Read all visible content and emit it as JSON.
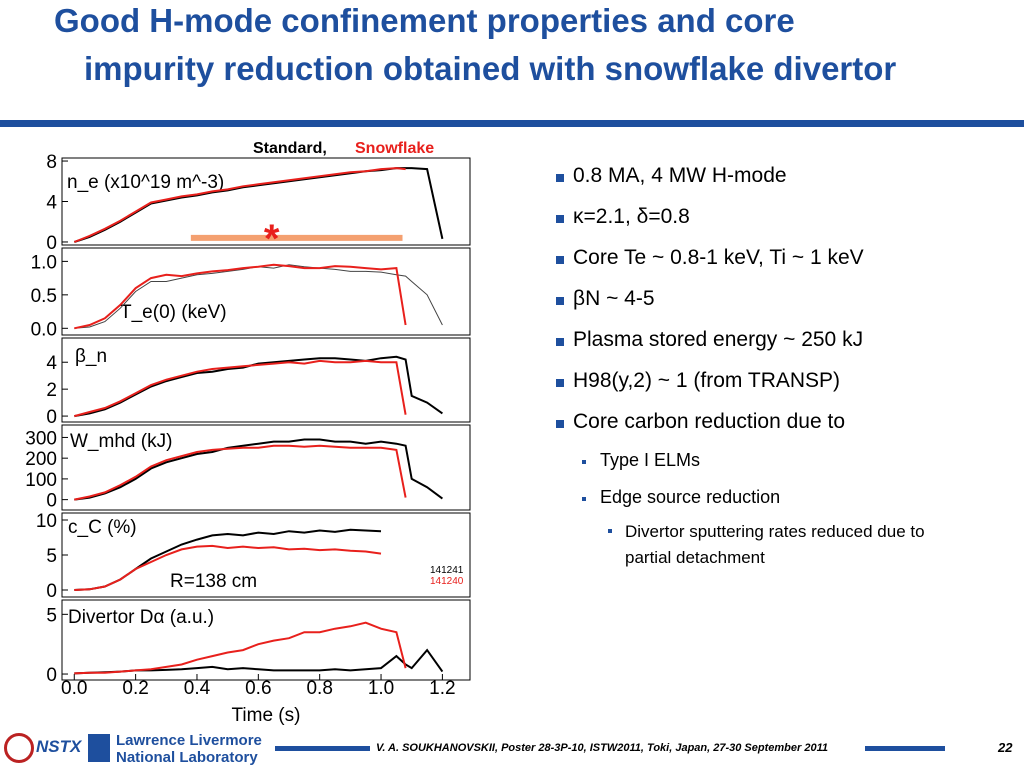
{
  "slide": {
    "title_line1": "Good H-mode confinement properties and core",
    "title_line2": "impurity reduction obtained with snowflake divertor",
    "bullets": [
      "0.8 MA, 4 MW H-mode",
      "κ=2.1, δ=0.8",
      "Core Te ~ 0.8-1 keV, Ti ~ 1 keV",
      "βN ~ 4-5",
      "Plasma stored energy ~ 250 kJ",
      "H98(y,2) ~ 1 (from TRANSP)",
      "Core carbon reduction due to"
    ],
    "sub_bullets": [
      "Type I ELMs",
      "Edge source reduction"
    ],
    "sub_sub_bullets": [
      "Divertor sputtering rates reduced due to partial detachment"
    ],
    "logo_left": "NSTX",
    "logo_right_line1": "Lawrence Livermore",
    "logo_right_line2": "National Laboratory",
    "footer": "V. A. SOUKHANOVSKII, Poster 28-3P-10, ISTW2011, Toki, Japan, 27-30 September 2011",
    "page_number": "22",
    "legend_standard": "Standard,",
    "legend_snowflake": "Snowflake"
  },
  "chart_data": [
    {
      "type": "line",
      "label": "n_e (x10^19 m^-3)",
      "x": [
        0,
        0.05,
        0.1,
        0.15,
        0.2,
        0.25,
        0.3,
        0.35,
        0.4,
        0.45,
        0.5,
        0.55,
        0.6,
        0.65,
        0.7,
        0.75,
        0.8,
        0.85,
        0.9,
        0.95,
        1.0,
        1.05,
        1.08,
        1.1,
        1.15,
        1.2,
        1.25
      ],
      "xlim": [
        -0.04,
        1.29
      ],
      "ylim": [
        -0.3,
        8.3
      ],
      "yticks": [
        0,
        4,
        8
      ],
      "annotation": {
        "text": "*",
        "x": [
          0.38,
          1.07
        ],
        "y": 0.4,
        "color": "#f4a070"
      },
      "series": [
        {
          "color": "#000000",
          "values": [
            0,
            0.5,
            1.2,
            2.0,
            2.9,
            3.8,
            4.1,
            4.4,
            4.6,
            4.9,
            5.1,
            5.4,
            5.6,
            5.8,
            6.0,
            6.2,
            6.4,
            6.6,
            6.8,
            7.0,
            7.1,
            7.3,
            7.3,
            7.3,
            7.2,
            0.3,
            null
          ]
        },
        {
          "color": "#e8201c",
          "values": [
            0,
            0.6,
            1.3,
            2.1,
            3.0,
            3.9,
            4.2,
            4.5,
            4.7,
            5.0,
            5.2,
            5.5,
            5.7,
            5.9,
            6.1,
            6.3,
            6.5,
            6.7,
            6.9,
            7.0,
            7.2,
            7.3,
            7.2,
            null,
            null,
            null,
            null
          ]
        }
      ]
    },
    {
      "type": "line",
      "label": "T_e(0) (keV)",
      "x": [
        0,
        0.05,
        0.1,
        0.15,
        0.2,
        0.25,
        0.3,
        0.35,
        0.4,
        0.45,
        0.5,
        0.55,
        0.6,
        0.65,
        0.7,
        0.75,
        0.8,
        0.85,
        0.9,
        0.95,
        1.0,
        1.05,
        1.08,
        1.1,
        1.15,
        1.2,
        1.25
      ],
      "xlim": [
        -0.04,
        1.29
      ],
      "ylim": [
        -0.1,
        1.2
      ],
      "yticks": [
        {
          "value": 0,
          "label": "0.0"
        },
        0.5,
        {
          "value": 1,
          "label": "1.0"
        }
      ],
      "series": [
        {
          "color": "#444444",
          "values": [
            0.0,
            0.02,
            0.1,
            0.3,
            0.55,
            0.7,
            0.7,
            0.75,
            0.8,
            0.82,
            0.85,
            0.88,
            0.92,
            0.9,
            0.95,
            0.92,
            0.9,
            0.88,
            0.85,
            0.85,
            0.84,
            0.8,
            0.78,
            0.7,
            0.5,
            0.05,
            null
          ]
        },
        {
          "color": "#e8201c",
          "values": [
            0.0,
            0.05,
            0.15,
            0.35,
            0.6,
            0.75,
            0.8,
            0.78,
            0.82,
            0.85,
            0.87,
            0.9,
            0.92,
            0.95,
            0.93,
            0.9,
            0.9,
            0.93,
            0.92,
            0.9,
            0.88,
            0.9,
            0.05,
            null,
            null,
            null,
            null
          ]
        }
      ]
    },
    {
      "type": "line",
      "label": "β_n",
      "x": [
        0,
        0.05,
        0.1,
        0.15,
        0.2,
        0.25,
        0.3,
        0.35,
        0.4,
        0.45,
        0.5,
        0.55,
        0.6,
        0.65,
        0.7,
        0.75,
        0.8,
        0.85,
        0.9,
        0.95,
        1.0,
        1.05,
        1.08,
        1.1,
        1.15,
        1.2,
        1.25
      ],
      "xlim": [
        -0.04,
        1.29
      ],
      "ylim": [
        -0.44,
        5.8
      ],
      "yticks": [
        0,
        2,
        4
      ],
      "series": [
        {
          "color": "#000000",
          "values": [
            0,
            0.2,
            0.5,
            1.0,
            1.6,
            2.2,
            2.6,
            2.9,
            3.2,
            3.3,
            3.5,
            3.6,
            3.9,
            4.0,
            4.1,
            4.2,
            4.3,
            4.3,
            4.2,
            4.1,
            4.3,
            4.4,
            4.2,
            1.5,
            1.0,
            0.2,
            null
          ]
        },
        {
          "color": "#e8201c",
          "values": [
            0,
            0.3,
            0.6,
            1.1,
            1.7,
            2.3,
            2.7,
            3.0,
            3.3,
            3.5,
            3.6,
            3.7,
            3.8,
            3.9,
            4.0,
            3.9,
            4.1,
            4.0,
            4.0,
            4.1,
            4.0,
            4.0,
            0.1,
            null,
            null,
            null,
            null
          ]
        }
      ]
    },
    {
      "type": "line",
      "label": "W_mhd (kJ)",
      "x": [
        0,
        0.05,
        0.1,
        0.15,
        0.2,
        0.25,
        0.3,
        0.35,
        0.4,
        0.45,
        0.5,
        0.55,
        0.6,
        0.65,
        0.7,
        0.75,
        0.8,
        0.85,
        0.9,
        0.95,
        1.0,
        1.05,
        1.08,
        1.1,
        1.15,
        1.2,
        1.25
      ],
      "xlim": [
        -0.04,
        1.29
      ],
      "ylim": [
        -50,
        360
      ],
      "yticks": [
        0,
        100,
        200,
        300
      ],
      "series": [
        {
          "color": "#000000",
          "values": [
            0,
            10,
            30,
            60,
            100,
            150,
            180,
            200,
            220,
            230,
            250,
            260,
            270,
            280,
            280,
            290,
            290,
            280,
            280,
            270,
            280,
            270,
            260,
            100,
            60,
            5,
            null
          ]
        },
        {
          "color": "#e8201c",
          "values": [
            0,
            15,
            35,
            70,
            110,
            160,
            190,
            210,
            230,
            240,
            245,
            250,
            250,
            260,
            260,
            255,
            260,
            255,
            250,
            250,
            250,
            240,
            10,
            null,
            null,
            null,
            null
          ]
        }
      ]
    },
    {
      "type": "line",
      "label": "c_C (%)",
      "annotation_text": "R=138 cm",
      "x": [
        0,
        0.05,
        0.1,
        0.15,
        0.2,
        0.25,
        0.3,
        0.35,
        0.4,
        0.45,
        0.5,
        0.55,
        0.6,
        0.65,
        0.7,
        0.75,
        0.8,
        0.85,
        0.9,
        0.95,
        1.0,
        1.05,
        1.08,
        1.1,
        1.15,
        1.2,
        1.25
      ],
      "xlim": [
        -0.04,
        1.29
      ],
      "ylim": [
        -1,
        11
      ],
      "yticks": [
        0,
        5,
        10
      ],
      "series": [
        {
          "name": "141241",
          "color": "#000000",
          "values": [
            0,
            0.1,
            0.5,
            1.5,
            3.0,
            4.5,
            5.5,
            6.5,
            7.2,
            7.8,
            8.0,
            7.8,
            8.2,
            8.0,
            8.4,
            8.2,
            8.5,
            8.3,
            8.6,
            8.5,
            8.4,
            null,
            null,
            null,
            null,
            null,
            null
          ]
        },
        {
          "name": "141240",
          "color": "#e8201c",
          "values": [
            0,
            0.1,
            0.5,
            1.5,
            3.0,
            4.0,
            5.0,
            5.8,
            6.2,
            6.3,
            6.0,
            6.2,
            6.0,
            6.1,
            5.8,
            5.9,
            5.7,
            5.8,
            5.6,
            5.5,
            5.2,
            null,
            null,
            null,
            null,
            null,
            null
          ]
        }
      ]
    },
    {
      "type": "line",
      "label": "Divertor Dα (a.u.)",
      "xlabel": "Time (s)",
      "x": [
        0,
        0.05,
        0.1,
        0.15,
        0.2,
        0.25,
        0.3,
        0.35,
        0.4,
        0.45,
        0.5,
        0.55,
        0.6,
        0.65,
        0.7,
        0.75,
        0.8,
        0.85,
        0.9,
        0.95,
        1.0,
        1.05,
        1.08,
        1.1,
        1.15,
        1.2,
        1.25
      ],
      "xlim": [
        -0.04,
        1.29
      ],
      "ylim": [
        -0.5,
        6.2
      ],
      "yticks": [
        0,
        5
      ],
      "xticks": [
        {
          "value": 0,
          "label": "0.0"
        },
        0.2,
        0.4,
        0.6,
        0.8,
        {
          "value": 1,
          "label": "1.0"
        },
        1.2
      ],
      "series": [
        {
          "color": "#000000",
          "values": [
            0.05,
            0.1,
            0.15,
            0.2,
            0.3,
            0.3,
            0.35,
            0.4,
            0.5,
            0.6,
            0.4,
            0.5,
            0.4,
            0.3,
            0.3,
            0.3,
            0.3,
            0.4,
            0.3,
            0.4,
            0.5,
            1.5,
            0.8,
            0.5,
            2.0,
            0.2,
            null
          ]
        },
        {
          "color": "#e8201c",
          "values": [
            0.05,
            0.1,
            0.1,
            0.2,
            0.3,
            0.4,
            0.6,
            0.8,
            1.2,
            1.5,
            1.8,
            2.0,
            2.5,
            2.8,
            3.0,
            3.5,
            3.5,
            3.8,
            4.0,
            4.3,
            3.8,
            3.5,
            0.5,
            null,
            null,
            null,
            null
          ]
        }
      ]
    }
  ]
}
